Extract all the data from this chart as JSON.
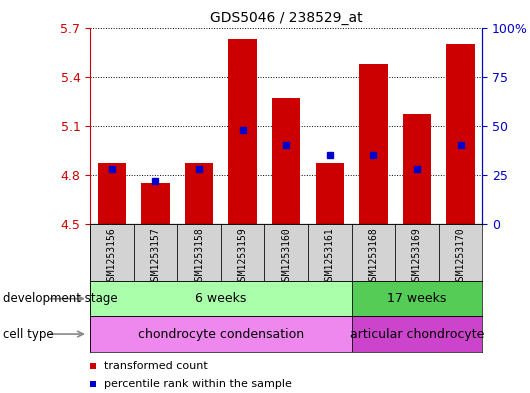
{
  "title": "GDS5046 / 238529_at",
  "samples": [
    "GSM1253156",
    "GSM1253157",
    "GSM1253158",
    "GSM1253159",
    "GSM1253160",
    "GSM1253161",
    "GSM1253168",
    "GSM1253169",
    "GSM1253170"
  ],
  "transformed_counts": [
    4.87,
    4.75,
    4.87,
    5.63,
    5.27,
    4.87,
    5.48,
    5.17,
    5.6
  ],
  "percentile_ranks": [
    28,
    22,
    28,
    48,
    40,
    35,
    35,
    28,
    40
  ],
  "ylim": [
    4.5,
    5.7
  ],
  "yticks": [
    4.5,
    4.8,
    5.1,
    5.4,
    5.7
  ],
  "y2ticks": [
    0,
    25,
    50,
    75,
    100
  ],
  "y2labels": [
    "0",
    "25",
    "50",
    "75",
    "100%"
  ],
  "bar_color": "#cc0000",
  "percentile_color": "#0000cc",
  "grid_color": "black",
  "left_tick_color": "#cc0000",
  "right_tick_color": "#0000cc",
  "development_stage_groups": [
    {
      "label": "6 weeks",
      "start": 0,
      "end": 5,
      "color": "#aaffaa"
    },
    {
      "label": "17 weeks",
      "start": 6,
      "end": 8,
      "color": "#55cc55"
    }
  ],
  "cell_type_groups": [
    {
      "label": "chondrocyte condensation",
      "start": 0,
      "end": 5,
      "color": "#ee88ee"
    },
    {
      "label": "articular chondrocyte",
      "start": 6,
      "end": 8,
      "color": "#cc44cc"
    }
  ],
  "sample_bg_color": "#d3d3d3",
  "plot_bg_color": "#ffffff",
  "left_label": "development stage",
  "left_label2": "cell type",
  "legend_items": [
    {
      "color": "#cc0000",
      "label": "transformed count"
    },
    {
      "color": "#0000cc",
      "label": "percentile rank within the sample"
    }
  ]
}
